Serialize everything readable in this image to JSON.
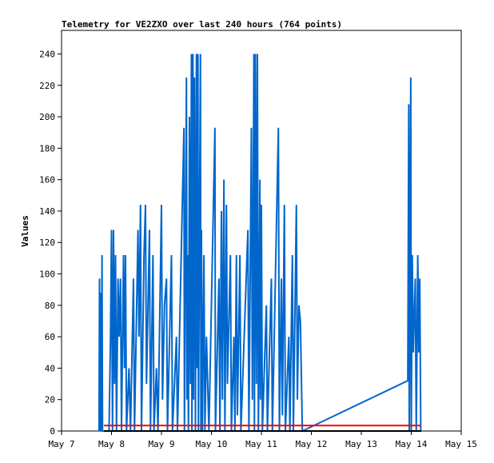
{
  "chart_data": {
    "type": "line",
    "title": "Telemetry for VE2ZXO over last 240 hours (764 points)",
    "y_label": "Values",
    "xlim": [
      7,
      15
    ],
    "xticks": [
      {
        "value": 7,
        "label": "May 7"
      },
      {
        "value": 8,
        "label": "May 8"
      },
      {
        "value": 9,
        "label": "May 9"
      },
      {
        "value": 10,
        "label": "May 10"
      },
      {
        "value": 11,
        "label": "May 11"
      },
      {
        "value": 12,
        "label": "May 12"
      },
      {
        "value": 13,
        "label": "May 13"
      },
      {
        "value": 14,
        "label": "May 14"
      },
      {
        "value": 15,
        "label": "May 15"
      }
    ],
    "ylim": [
      0,
      255
    ],
    "yticks": [
      0,
      20,
      40,
      60,
      80,
      100,
      120,
      140,
      160,
      180,
      200,
      220,
      240
    ],
    "series": [
      {
        "color": "#0066cc",
        "x": [
          7.75,
          7.76,
          7.77,
          7.79,
          7.8,
          7.81,
          7.82,
          7.95,
          7.98,
          8.0,
          8.02,
          8.04,
          8.06,
          8.08,
          8.1,
          8.13,
          8.15,
          8.18,
          8.2,
          8.24,
          8.26,
          8.28,
          8.3,
          8.35,
          8.38,
          8.44,
          8.46,
          8.53,
          8.55,
          8.58,
          8.6,
          8.65,
          8.68,
          8.7,
          8.76,
          8.78,
          8.83,
          8.85,
          8.9,
          8.93,
          9.0,
          9.02,
          9.06,
          9.1,
          9.12,
          9.2,
          9.22,
          9.3,
          9.32,
          9.45,
          9.46,
          9.5,
          9.51,
          9.52,
          9.54,
          9.56,
          9.58,
          9.6,
          9.61,
          9.63,
          9.64,
          9.66,
          9.68,
          9.7,
          9.71,
          9.73,
          9.74,
          9.78,
          9.79,
          9.8,
          9.82,
          9.85,
          9.87,
          9.9,
          9.95,
          10.07,
          10.08,
          10.15,
          10.17,
          10.2,
          10.22,
          10.25,
          10.27,
          10.3,
          10.32,
          10.38,
          10.4,
          10.45,
          10.47,
          10.5,
          10.52,
          10.57,
          10.59,
          10.73,
          10.75,
          10.8,
          10.82,
          10.85,
          10.86,
          10.88,
          10.9,
          10.92,
          10.94,
          10.97,
          10.98,
          11.0,
          11.02,
          11.1,
          11.12,
          11.2,
          11.22,
          11.34,
          11.36,
          11.4,
          11.42,
          11.46,
          11.48,
          11.55,
          11.57,
          11.62,
          11.64,
          11.7,
          11.72,
          11.75,
          11.78,
          11.82,
          13.93,
          13.95,
          13.96,
          13.98,
          13.99,
          14.0,
          14.02,
          14.04,
          14.08,
          14.1,
          14.13,
          14.15,
          14.17,
          14.19
        ],
        "values": [
          0,
          97,
          0,
          88,
          0,
          112,
          0,
          0,
          60,
          128,
          0,
          128,
          30,
          112,
          0,
          97,
          60,
          97,
          0,
          112,
          40,
          112,
          0,
          40,
          0,
          97,
          0,
          128,
          60,
          144,
          0,
          112,
          144,
          30,
          128,
          0,
          112,
          0,
          40,
          0,
          144,
          20,
          80,
          97,
          0,
          112,
          0,
          60,
          0,
          193,
          0,
          225,
          20,
          112,
          0,
          200,
          30,
          240,
          0,
          240,
          20,
          225,
          0,
          240,
          40,
          240,
          0,
          240,
          0,
          128,
          0,
          112,
          0,
          60,
          0,
          193,
          0,
          97,
          0,
          140,
          20,
          160,
          0,
          144,
          30,
          112,
          0,
          60,
          0,
          112,
          10,
          112,
          0,
          128,
          0,
          193,
          20,
          240,
          0,
          240,
          30,
          240,
          0,
          160,
          20,
          144,
          0,
          80,
          0,
          97,
          0,
          193,
          0,
          97,
          10,
          144,
          0,
          60,
          0,
          112,
          0,
          144,
          20,
          80,
          70,
          0,
          32,
          208,
          0,
          144,
          225,
          0,
          112,
          50,
          97,
          0,
          112,
          50,
          97,
          0
        ]
      },
      {
        "color": "#ff0000",
        "x": [
          7.85,
          14.2
        ],
        "values": [
          3.5,
          3.5
        ]
      },
      {
        "color": "#000000",
        "x": [
          7.85,
          14.2
        ],
        "values": [
          0,
          0
        ]
      }
    ]
  }
}
